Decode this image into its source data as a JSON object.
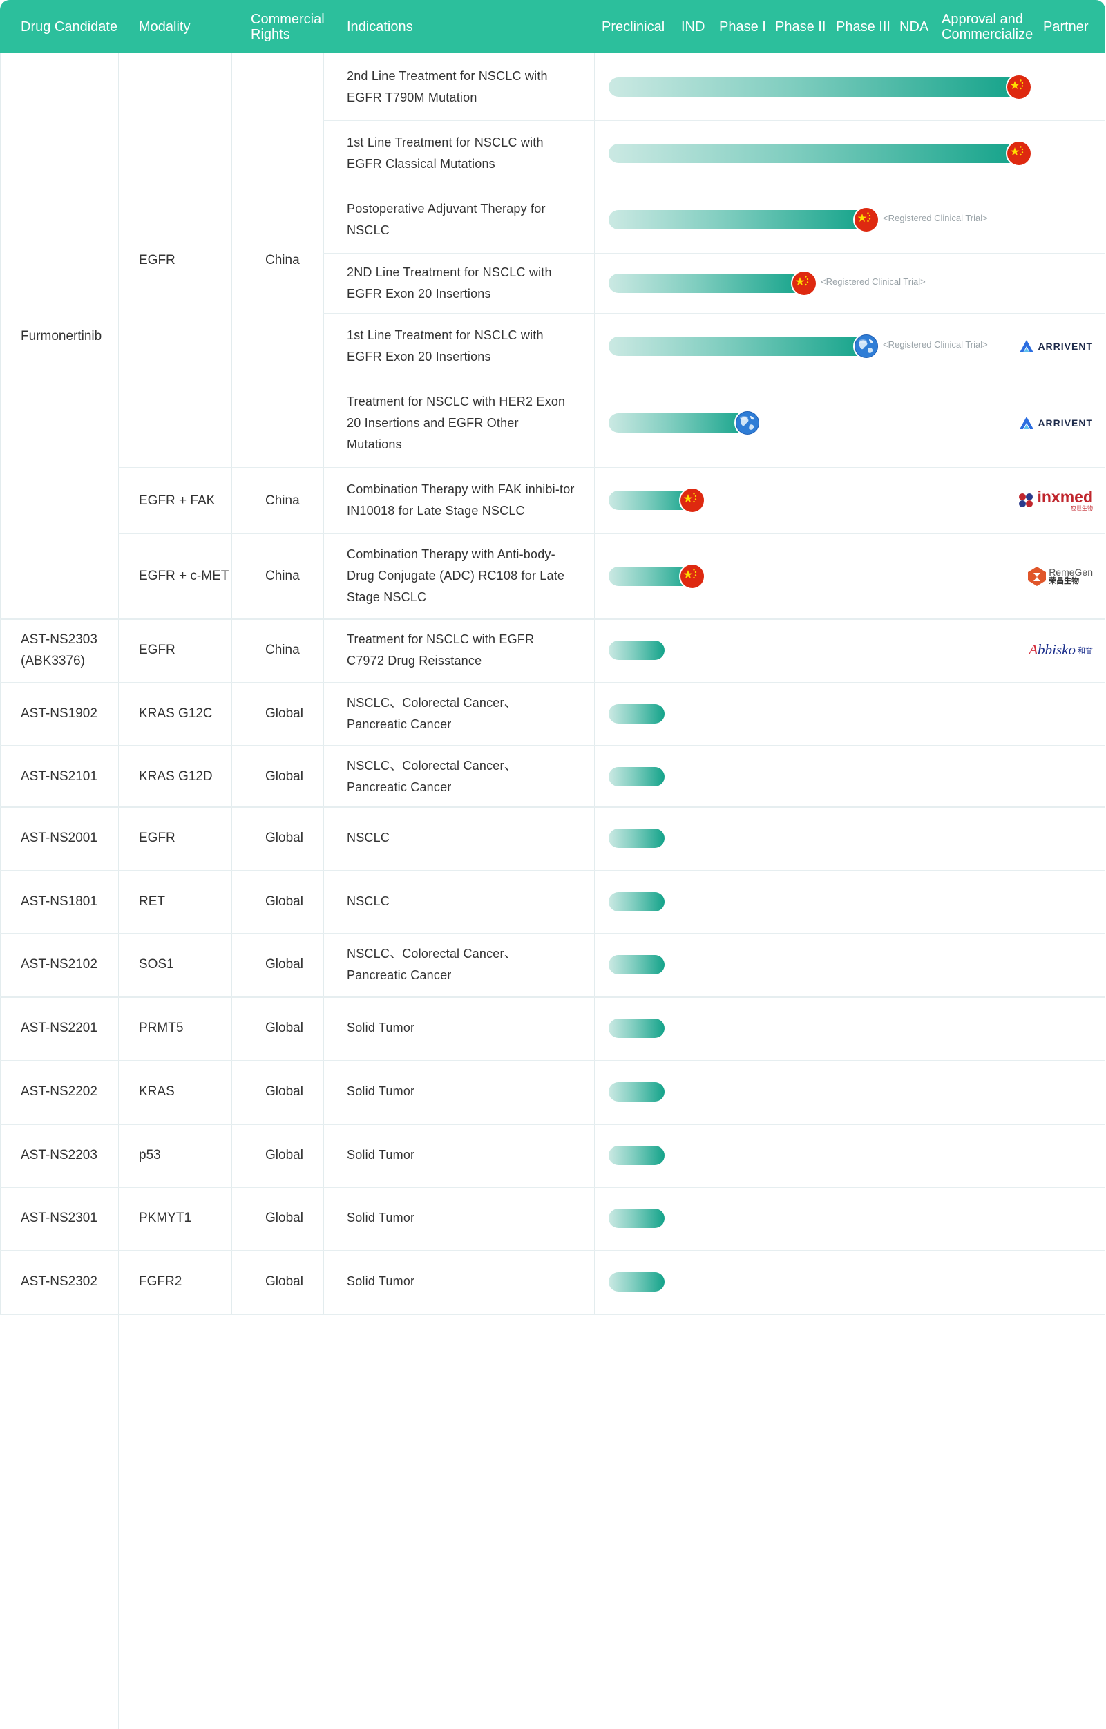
{
  "colors": {
    "header_bg": "#2cbf9c",
    "bar_end": "#14a38a",
    "bar_start": "#cbe9e3",
    "china_flag": "#de2910",
    "star": "#ffde00"
  },
  "header": {
    "drug_candidate": "Drug Candidate",
    "modality": "Modality",
    "commercial_rights": "Commercial\nRights",
    "indications": "Indications",
    "preclinical": "Preclinical",
    "ind": "IND",
    "phase1": "Phase I",
    "phase2": "Phase II",
    "phase3": "Phase III",
    "nda": "NDA",
    "approval": "Approval and\nCommercialize",
    "partner": "Partner"
  },
  "furmonertinib": {
    "name": "Furmonertinib",
    "modality_1": "EGFR",
    "rights_1": "China",
    "modality_2": "EGFR + FAK",
    "rights_2": "China",
    "modality_3": "EGFR + c-MET",
    "rights_3": "China"
  },
  "indications": [
    {
      "text": "2nd Line Treatment for NSCLC with EGFR T790M Mutation",
      "region": "china-flag-icon"
    },
    {
      "text": "1st Line Treatment for NSCLC with EGFR Classical Mutations",
      "region": "china-flag-icon"
    },
    {
      "text": "Postoperative Adjuvant Therapy for NSCLC",
      "region": "china-flag-icon",
      "note": "<Registered Clinical Trial>"
    },
    {
      "text": "2ND Line Treatment for NSCLC with EGFR Exon 20 Insertions",
      "region": "china-flag-icon",
      "note": "<Registered Clinical Trial>"
    },
    {
      "text": "1st Line Treatment for NSCLC with EGFR Exon 20 Insertions",
      "region": "globe-icon",
      "note": "<Registered Clinical Trial>",
      "partner": "ARRIVENT"
    },
    {
      "text": "Treatment for NSCLC with HER2 Exon 20 Insertions and EGFR Other Mutations",
      "region": "globe-icon",
      "partner": "ARRIVENT"
    },
    {
      "text": "Combination Therapy with FAK inhibi-tor IN10018 for Late Stage NSCLC",
      "region": "china-flag-icon",
      "partner": "inxmed",
      "partner_sub": "应世生物"
    },
    {
      "text": "Combination Therapy with Anti-body-Drug Conjugate (ADC) RC108 for Late Stage NSCLC",
      "region": "china-flag-icon",
      "partner": "RemeGen",
      "partner_sub": "荣昌生物"
    }
  ],
  "rows": [
    {
      "drug": "AST-NS2303\n(ABK3376)",
      "modality": "EGFR",
      "rights": "China",
      "indication": "Treatment for NSCLC with EGFR C7972 Drug Reisstance",
      "partner": "Abbisko",
      "partner_sub": "和誉"
    },
    {
      "drug": "AST-NS1902",
      "modality": "KRAS G12C",
      "rights": "Global",
      "indication": "NSCLC、Colorectal Cancer、Pancreatic Cancer"
    },
    {
      "drug": "AST-NS2101",
      "modality": "KRAS G12D",
      "rights": "Global",
      "indication": "NSCLC、Colorectal Cancer、Pancreatic Cancer"
    },
    {
      "drug": "AST-NS2001",
      "modality": "EGFR",
      "rights": "Global",
      "indication": "NSCLC"
    },
    {
      "drug": "AST-NS1801",
      "modality": "RET",
      "rights": "Global",
      "indication": "NSCLC"
    },
    {
      "drug": "AST-NS2102",
      "modality": "SOS1",
      "rights": "Global",
      "indication": "NSCLC、Colorectal Cancer、Pancreatic Cancer"
    },
    {
      "drug": "AST-NS2201",
      "modality": "PRMT5",
      "rights": "Global",
      "indication": "Solid Tumor"
    },
    {
      "drug": "AST-NS2202",
      "modality": "KRAS",
      "rights": "Global",
      "indication": "Solid Tumor"
    },
    {
      "drug": "AST-NS2203",
      "modality": "p53",
      "rights": "Global",
      "indication": "Solid Tumor"
    },
    {
      "drug": "AST-NS2301",
      "modality": "PKMYT1",
      "rights": "Global",
      "indication": "Solid Tumor"
    },
    {
      "drug": "AST-NS2302",
      "modality": "FGFR2",
      "rights": "Global",
      "indication": "Solid Tumor"
    }
  ]
}
